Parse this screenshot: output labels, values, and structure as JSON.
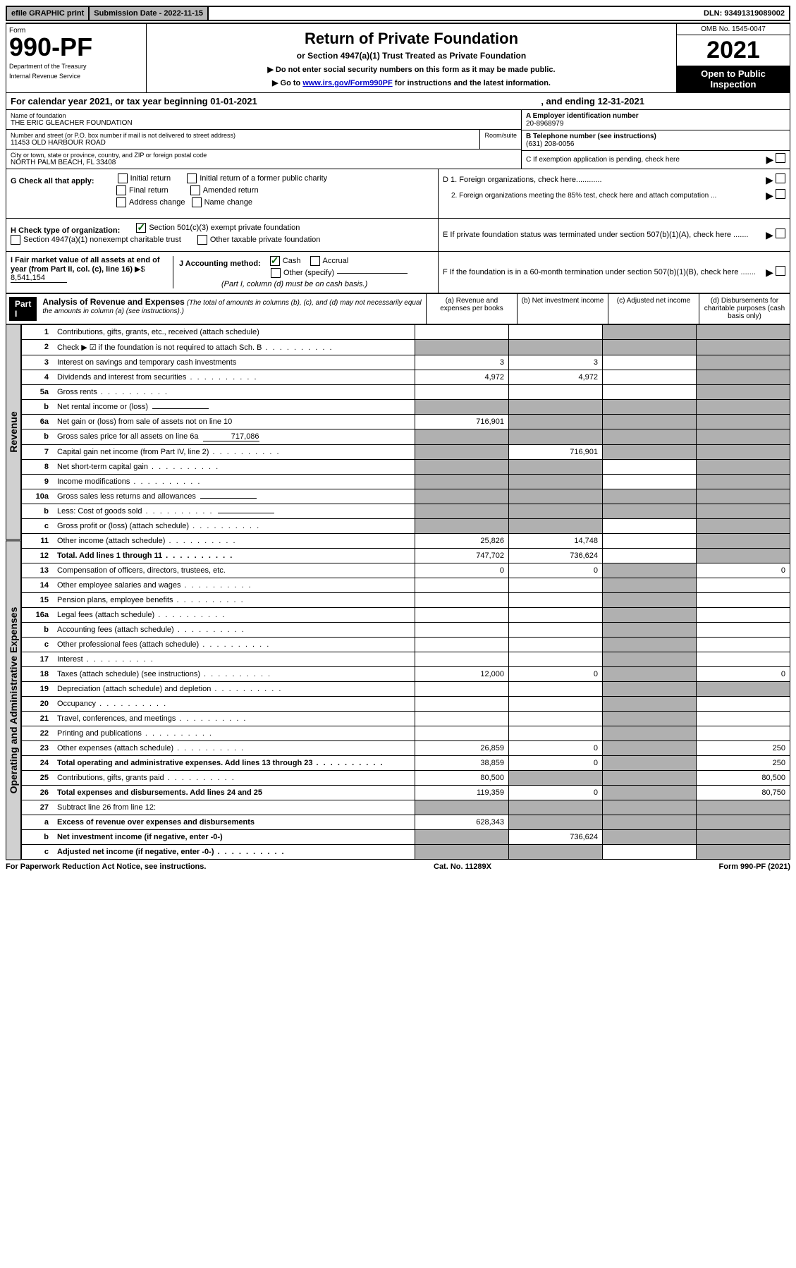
{
  "topbar": {
    "efile": "efile GRAPHIC print",
    "subdate_label": "Submission Date - 2022-11-15",
    "dln": "DLN: 93491319089002"
  },
  "header": {
    "form_label": "Form",
    "form_number": "990-PF",
    "dept1": "Department of the Treasury",
    "dept2": "Internal Revenue Service",
    "title": "Return of Private Foundation",
    "subtitle": "or Section 4947(a)(1) Trust Treated as Private Foundation",
    "instr1": "▶ Do not enter social security numbers on this form as it may be made public.",
    "instr2_pre": "▶ Go to ",
    "instr2_link": "www.irs.gov/Form990PF",
    "instr2_post": " for instructions and the latest information.",
    "omb": "OMB No. 1545-0047",
    "year": "2021",
    "open": "Open to Public Inspection"
  },
  "calyear": {
    "prefix": "For calendar year 2021, or tax year beginning 01-01-2021",
    "middle": ", and ending 12-31-2021"
  },
  "entity": {
    "name_label": "Name of foundation",
    "name": "THE ERIC GLEACHER FOUNDATION",
    "addr_label": "Number and street (or P.O. box number if mail is not delivered to street address)",
    "addr": "11453 OLD HARBOUR ROAD",
    "room_label": "Room/suite",
    "city_label": "City or town, state or province, country, and ZIP or foreign postal code",
    "city": "NORTH PALM BEACH, FL  33408",
    "ein_label": "A Employer identification number",
    "ein": "20-8968979",
    "phone_label": "B Telephone number (see instructions)",
    "phone": "(631) 208-0056",
    "c_label": "C If exemption application is pending, check here"
  },
  "checks": {
    "g_label": "G Check all that apply:",
    "initial": "Initial return",
    "initial_former": "Initial return of a former public charity",
    "final": "Final return",
    "amended": "Amended return",
    "address": "Address change",
    "namechg": "Name change",
    "h_label": "H Check type of organization:",
    "h_501c3": "Section 501(c)(3) exempt private foundation",
    "h_4947": "Section 4947(a)(1) nonexempt charitable trust",
    "h_other_taxable": "Other taxable private foundation",
    "i_label": "I Fair market value of all assets at end of year (from Part II, col. (c), line 16)",
    "i_value": "8,541,154",
    "j_label": "J Accounting method:",
    "j_cash": "Cash",
    "j_accrual": "Accrual",
    "j_other": "Other (specify)",
    "j_note": "(Part I, column (d) must be on cash basis.)",
    "d1": "D 1. Foreign organizations, check here............",
    "d2": "2. Foreign organizations meeting the 85% test, check here and attach computation ...",
    "e": "E If private foundation status was terminated under section 507(b)(1)(A), check here .......",
    "f": "F If the foundation is in a 60-month termination under section 507(b)(1)(B), check here ......."
  },
  "part1": {
    "label": "Part I",
    "title": "Analysis of Revenue and Expenses",
    "note": "(The total of amounts in columns (b), (c), and (d) may not necessarily equal the amounts in column (a) (see instructions).)",
    "col_a": "(a) Revenue and expenses per books",
    "col_b": "(b) Net investment income",
    "col_c": "(c) Adjusted net income",
    "col_d": "(d) Disbursements for charitable purposes (cash basis only)"
  },
  "sides": {
    "revenue": "Revenue",
    "expenses": "Operating and Administrative Expenses"
  },
  "rows": [
    {
      "n": "1",
      "d": "Contributions, gifts, grants, etc., received (attach schedule)",
      "a": "",
      "b": "",
      "c": "s",
      "ds": "s"
    },
    {
      "n": "2",
      "d": "Check ▶ ☑ if the foundation is not required to attach Sch. B",
      "dots": true,
      "a": "s",
      "b": "s",
      "c": "s",
      "ds": "s"
    },
    {
      "n": "3",
      "d": "Interest on savings and temporary cash investments",
      "a": "3",
      "b": "3",
      "c": "",
      "ds": "s"
    },
    {
      "n": "4",
      "d": "Dividends and interest from securities",
      "dots": true,
      "a": "4,972",
      "b": "4,972",
      "c": "",
      "ds": "s"
    },
    {
      "n": "5a",
      "d": "Gross rents",
      "dots": true,
      "a": "",
      "b": "",
      "c": "",
      "ds": "s"
    },
    {
      "n": "b",
      "d": "Net rental income or (loss)",
      "inline": "",
      "a": "s",
      "b": "s",
      "c": "s",
      "ds": "s"
    },
    {
      "n": "6a",
      "d": "Net gain or (loss) from sale of assets not on line 10",
      "a": "716,901",
      "b": "s",
      "c": "s",
      "ds": "s"
    },
    {
      "n": "b",
      "d": "Gross sales price for all assets on line 6a",
      "inline": "717,086",
      "a": "s",
      "b": "s",
      "c": "s",
      "ds": "s"
    },
    {
      "n": "7",
      "d": "Capital gain net income (from Part IV, line 2)",
      "dots": true,
      "a": "s",
      "b": "716,901",
      "c": "s",
      "ds": "s"
    },
    {
      "n": "8",
      "d": "Net short-term capital gain",
      "dots": true,
      "a": "s",
      "b": "s",
      "c": "",
      "ds": "s"
    },
    {
      "n": "9",
      "d": "Income modifications",
      "dots": true,
      "a": "s",
      "b": "s",
      "c": "",
      "ds": "s"
    },
    {
      "n": "10a",
      "d": "Gross sales less returns and allowances",
      "inline": "",
      "a": "s",
      "b": "s",
      "c": "s",
      "ds": "s"
    },
    {
      "n": "b",
      "d": "Less: Cost of goods sold",
      "dots": true,
      "inline": "",
      "a": "s",
      "b": "s",
      "c": "s",
      "ds": "s"
    },
    {
      "n": "c",
      "d": "Gross profit or (loss) (attach schedule)",
      "dots": true,
      "a": "s",
      "b": "s",
      "c": "",
      "ds": "s"
    },
    {
      "n": "11",
      "d": "Other income (attach schedule)",
      "dots": true,
      "a": "25,826",
      "b": "14,748",
      "c": "",
      "ds": "s"
    },
    {
      "n": "12",
      "d": "Total. Add lines 1 through 11",
      "dots": true,
      "bold": true,
      "a": "747,702",
      "b": "736,624",
      "c": "",
      "ds": "s"
    },
    {
      "n": "13",
      "d": "Compensation of officers, directors, trustees, etc.",
      "a": "0",
      "b": "0",
      "c": "s",
      "ds": "0"
    },
    {
      "n": "14",
      "d": "Other employee salaries and wages",
      "dots": true,
      "a": "",
      "b": "",
      "c": "s",
      "ds": ""
    },
    {
      "n": "15",
      "d": "Pension plans, employee benefits",
      "dots": true,
      "a": "",
      "b": "",
      "c": "s",
      "ds": ""
    },
    {
      "n": "16a",
      "d": "Legal fees (attach schedule)",
      "dots": true,
      "a": "",
      "b": "",
      "c": "s",
      "ds": ""
    },
    {
      "n": "b",
      "d": "Accounting fees (attach schedule)",
      "dots": true,
      "a": "",
      "b": "",
      "c": "s",
      "ds": ""
    },
    {
      "n": "c",
      "d": "Other professional fees (attach schedule)",
      "dots": true,
      "a": "",
      "b": "",
      "c": "s",
      "ds": ""
    },
    {
      "n": "17",
      "d": "Interest",
      "dots": true,
      "a": "",
      "b": "",
      "c": "s",
      "ds": ""
    },
    {
      "n": "18",
      "d": "Taxes (attach schedule) (see instructions)",
      "dots": true,
      "a": "12,000",
      "b": "0",
      "c": "s",
      "ds": "0"
    },
    {
      "n": "19",
      "d": "Depreciation (attach schedule) and depletion",
      "dots": true,
      "a": "",
      "b": "",
      "c": "s",
      "ds": "s"
    },
    {
      "n": "20",
      "d": "Occupancy",
      "dots": true,
      "a": "",
      "b": "",
      "c": "s",
      "ds": ""
    },
    {
      "n": "21",
      "d": "Travel, conferences, and meetings",
      "dots": true,
      "a": "",
      "b": "",
      "c": "s",
      "ds": ""
    },
    {
      "n": "22",
      "d": "Printing and publications",
      "dots": true,
      "a": "",
      "b": "",
      "c": "s",
      "ds": ""
    },
    {
      "n": "23",
      "d": "Other expenses (attach schedule)",
      "dots": true,
      "a": "26,859",
      "b": "0",
      "c": "s",
      "ds": "250"
    },
    {
      "n": "24",
      "d": "Total operating and administrative expenses. Add lines 13 through 23",
      "dots": true,
      "bold": true,
      "a": "38,859",
      "b": "0",
      "c": "s",
      "ds": "250"
    },
    {
      "n": "25",
      "d": "Contributions, gifts, grants paid",
      "dots": true,
      "a": "80,500",
      "b": "s",
      "c": "s",
      "ds": "80,500"
    },
    {
      "n": "26",
      "d": "Total expenses and disbursements. Add lines 24 and 25",
      "bold": true,
      "a": "119,359",
      "b": "0",
      "c": "s",
      "ds": "80,750"
    },
    {
      "n": "27",
      "d": "Subtract line 26 from line 12:",
      "a": "s",
      "b": "s",
      "c": "s",
      "ds": "s"
    },
    {
      "n": "a",
      "d": "Excess of revenue over expenses and disbursements",
      "bold": true,
      "a": "628,343",
      "b": "s",
      "c": "s",
      "ds": "s"
    },
    {
      "n": "b",
      "d": "Net investment income (if negative, enter -0-)",
      "bold": true,
      "a": "s",
      "b": "736,624",
      "c": "s",
      "ds": "s"
    },
    {
      "n": "c",
      "d": "Adjusted net income (if negative, enter -0-)",
      "dots": true,
      "bold": true,
      "a": "s",
      "b": "s",
      "c": "",
      "ds": "s"
    }
  ],
  "footer": {
    "left": "For Paperwork Reduction Act Notice, see instructions.",
    "mid": "Cat. No. 11289X",
    "right": "Form 990-PF (2021)"
  }
}
